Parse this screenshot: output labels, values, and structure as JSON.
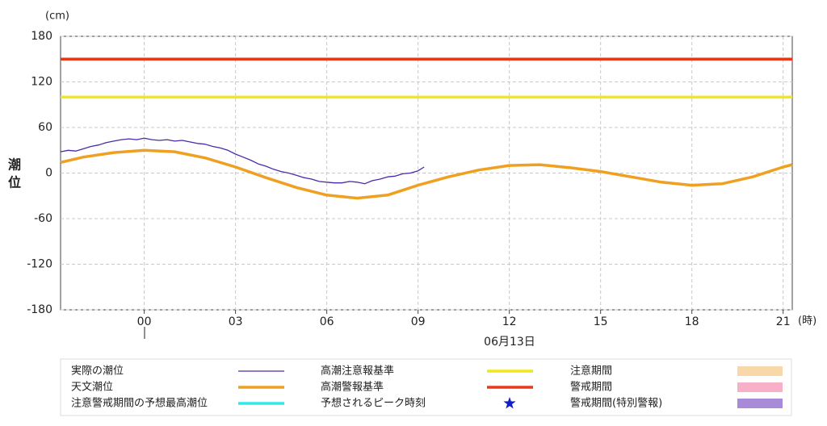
{
  "chart_data": {
    "type": "line",
    "y_unit": "(cm)",
    "y_label_top": "潮",
    "y_label_bottom": "位",
    "x_unit": "(時)",
    "date_label": "06月13日",
    "xlim": [
      -2.75,
      21.3
    ],
    "xticks": [
      {
        "value": 0,
        "label": "00"
      },
      {
        "value": 3,
        "label": "03"
      },
      {
        "value": 6,
        "label": "06"
      },
      {
        "value": 9,
        "label": "09"
      },
      {
        "value": 12,
        "label": "12"
      },
      {
        "value": 15,
        "label": "15"
      },
      {
        "value": 18,
        "label": "18"
      },
      {
        "value": 21,
        "label": "21"
      }
    ],
    "ylim": [
      -180,
      180
    ],
    "yticks": [
      -180,
      -120,
      -60,
      0,
      60,
      120,
      180
    ],
    "grid": true,
    "series": [
      {
        "name": "実際の潮位",
        "color": "#4b2aa8",
        "x": [
          -2.75,
          -2.5,
          -2.25,
          -2,
          -1.75,
          -1.5,
          -1.25,
          -1,
          -0.75,
          -0.5,
          -0.25,
          0,
          0.25,
          0.5,
          0.75,
          1,
          1.25,
          1.5,
          1.75,
          2,
          2.25,
          2.5,
          2.75,
          3,
          3.25,
          3.5,
          3.75,
          4,
          4.25,
          4.5,
          4.75,
          5,
          5.25,
          5.5,
          5.75,
          6,
          6.25,
          6.5,
          6.75,
          7,
          7.25,
          7.5,
          7.75,
          8,
          8.25,
          8.5,
          8.75,
          9,
          9.2
        ],
        "values": [
          28,
          30,
          29,
          32,
          35,
          37,
          40,
          42,
          44,
          45,
          44,
          46,
          44,
          43,
          44,
          42,
          43,
          41,
          39,
          38,
          35,
          33,
          30,
          25,
          21,
          17,
          12,
          9,
          5,
          2,
          0,
          -3,
          -6,
          -8,
          -11,
          -12,
          -13,
          -13,
          -11,
          -12,
          -14,
          -10,
          -8,
          -5,
          -4,
          -1,
          0,
          3,
          8
        ]
      },
      {
        "name": "天文潮位",
        "color": "#f0a020",
        "x": [
          -2.75,
          -2,
          -1,
          0,
          1,
          2,
          3,
          4,
          5,
          6,
          7,
          8,
          9,
          10,
          11,
          12,
          13,
          14,
          15,
          16,
          17,
          18,
          19,
          20,
          21,
          21.3
        ],
        "values": [
          14,
          21,
          27,
          30,
          28,
          20,
          8,
          -6,
          -19,
          -29,
          -33,
          -29,
          -16,
          -5,
          4,
          10,
          11,
          7,
          2,
          -5,
          -12,
          -16,
          -14,
          -5,
          8,
          11
        ]
      }
    ],
    "hlines": [
      {
        "name": "高潮注意報基準",
        "value": 100,
        "color": "#f0e818"
      },
      {
        "name": "高潮警報基準",
        "value": 150,
        "color": "#e83818"
      }
    ],
    "legend_extras": [
      {
        "name": "注意警戒期間の予想最高潮位",
        "color": "#30e8e8",
        "symbol": "line"
      },
      {
        "name": "予想されるピーク時刻",
        "color": "#1020c8",
        "symbol": "star"
      },
      {
        "name": "注意期間",
        "color": "#f8d8a8",
        "symbol": "box"
      },
      {
        "name": "警戒期間",
        "color": "#f8b0c8",
        "symbol": "box"
      },
      {
        "name": "警戒期間(特別警報)",
        "color": "#a88ad8",
        "symbol": "box"
      }
    ]
  }
}
